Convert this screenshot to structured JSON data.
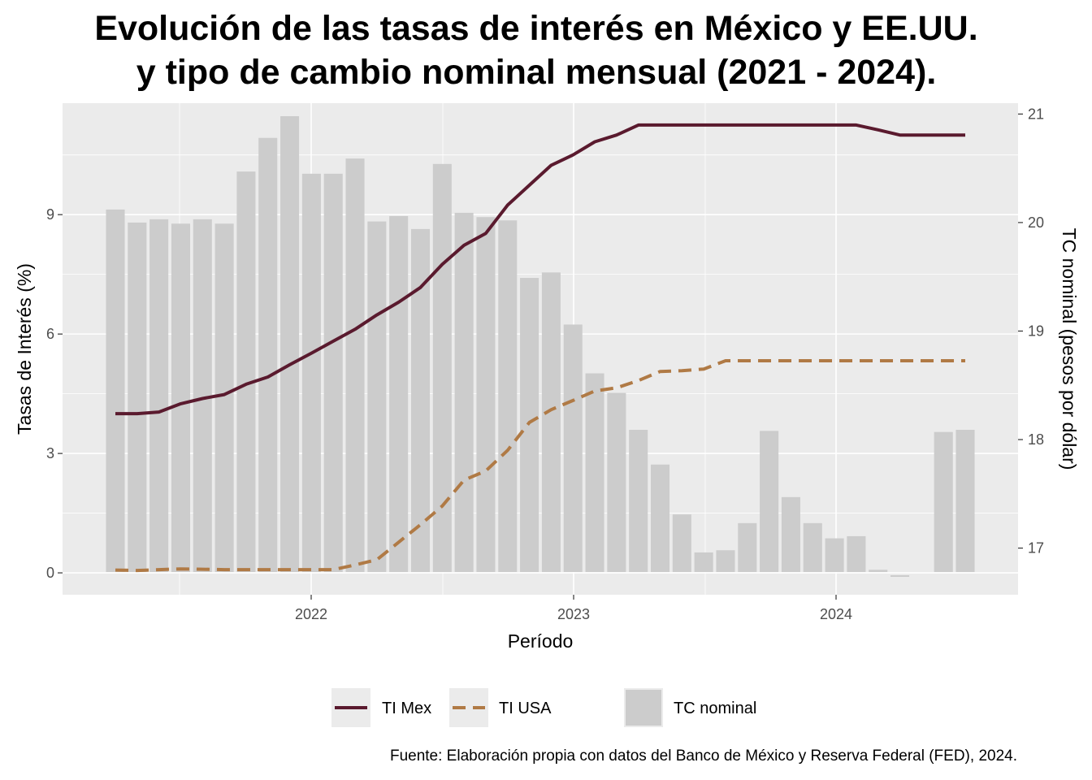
{
  "title": {
    "line1": "Evolución de las tasas de interés en México y EE.UU.",
    "line2": "y tipo de cambio nominal mensual (2021 - 2024)."
  },
  "source": "Fuente: Elaboración propia con datos del Banco de México y Reserva Federal (FED), 2024.",
  "colors": {
    "mex": "#5a1a2e",
    "usa": "#b07a45",
    "bars": "#cccccc",
    "panel": "#ebebeb",
    "grid": "#ffffff"
  },
  "chart_data": {
    "type": "bar",
    "xlabel": "Período",
    "ylabel": "Tasas de Interés (%)",
    "y2label": "TC nominal (pesos por dólar)",
    "x_ticks": [
      "2022",
      "2023",
      "2024"
    ],
    "y_ticks": [
      "0",
      "3",
      "6",
      "9"
    ],
    "y2_ticks": [
      "17",
      "18",
      "19",
      "20",
      "21"
    ],
    "ylim": [
      -0.55,
      11.8
    ],
    "y2lim": [
      16.57,
      21.1
    ],
    "categories": [
      "2021-04",
      "2021-05",
      "2021-06",
      "2021-07",
      "2021-08",
      "2021-09",
      "2021-10",
      "2021-11",
      "2021-12",
      "2022-01",
      "2022-02",
      "2022-03",
      "2022-04",
      "2022-05",
      "2022-06",
      "2022-07",
      "2022-08",
      "2022-09",
      "2022-10",
      "2022-11",
      "2022-12",
      "2023-01",
      "2023-02",
      "2023-03",
      "2023-04",
      "2023-05",
      "2023-06",
      "2023-07",
      "2023-08",
      "2023-09",
      "2023-10",
      "2023-11",
      "2023-12",
      "2024-01",
      "2024-02",
      "2024-03",
      "2024-04",
      "2024-05",
      "2024-06",
      "2024-07"
    ],
    "series": [
      {
        "name": "TC nominal",
        "type": "bar",
        "axis": "right",
        "values": [
          20.12,
          20.0,
          20.03,
          19.99,
          20.03,
          19.99,
          20.47,
          20.78,
          20.98,
          20.45,
          20.45,
          20.59,
          20.01,
          20.06,
          19.94,
          20.54,
          20.09,
          20.05,
          20.02,
          19.49,
          19.54,
          19.06,
          18.61,
          18.43,
          18.09,
          17.77,
          17.31,
          16.96,
          16.98,
          17.23,
          18.08,
          17.47,
          17.23,
          17.09,
          17.11,
          16.8,
          16.75,
          16.78,
          18.07,
          18.09
        ]
      },
      {
        "name": "TI Mex",
        "type": "line",
        "axis": "left",
        "values": [
          4.0,
          4.0,
          4.04,
          4.25,
          4.38,
          4.48,
          4.74,
          4.92,
          5.23,
          5.52,
          5.82,
          6.12,
          6.48,
          6.8,
          7.17,
          7.75,
          8.23,
          8.53,
          9.24,
          9.74,
          10.24,
          10.5,
          10.83,
          11.0,
          11.25,
          11.25,
          11.25,
          11.25,
          11.25,
          11.25,
          11.25,
          11.25,
          11.25,
          11.25,
          11.25,
          11.13,
          11.0,
          11.0,
          11.0,
          11.0
        ]
      },
      {
        "name": "TI USA",
        "type": "line",
        "axis": "left",
        "values": [
          0.07,
          0.06,
          0.08,
          0.1,
          0.09,
          0.08,
          0.08,
          0.08,
          0.08,
          0.08,
          0.08,
          0.2,
          0.33,
          0.77,
          1.21,
          1.68,
          2.33,
          2.56,
          3.08,
          3.78,
          4.1,
          4.33,
          4.57,
          4.65,
          4.83,
          5.06,
          5.08,
          5.12,
          5.33,
          5.33,
          5.33,
          5.33,
          5.33,
          5.33,
          5.33,
          5.33,
          5.33,
          5.33,
          5.33,
          5.33
        ]
      }
    ],
    "legend": {
      "position": "bottom",
      "items": [
        "TI Mex",
        "TI USA",
        "TC nominal"
      ]
    }
  }
}
